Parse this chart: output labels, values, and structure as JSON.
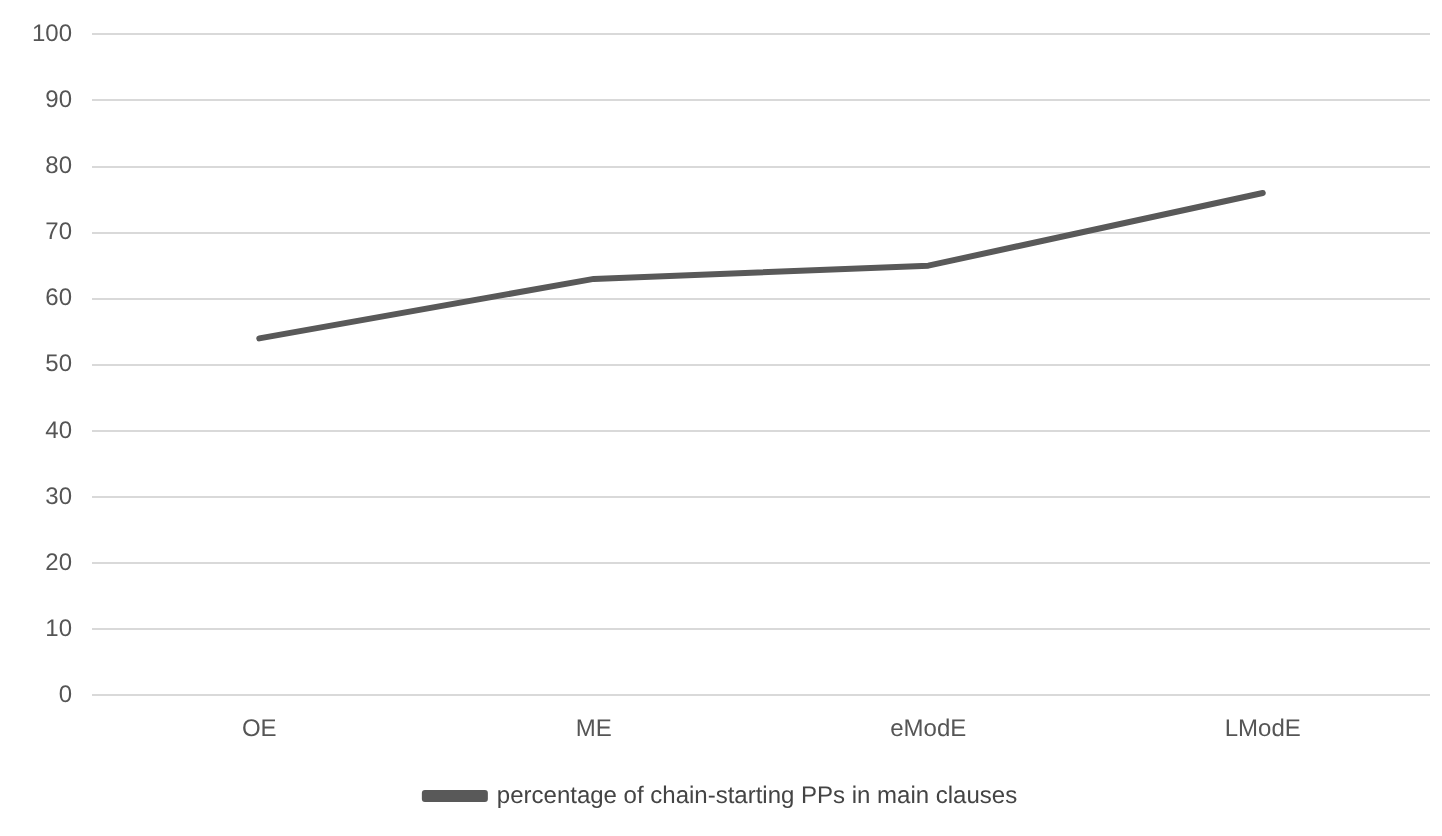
{
  "chart_data": {
    "type": "line",
    "categories": [
      "OE",
      "ME",
      "eModE",
      "LModE"
    ],
    "series": [
      {
        "name": "percentage of chain-starting PPs in main clauses",
        "color": "#595959",
        "values": [
          54,
          63,
          65,
          76
        ]
      }
    ],
    "ylim": [
      0,
      100
    ],
    "yticks": [
      0,
      10,
      20,
      30,
      40,
      50,
      60,
      70,
      80,
      90,
      100
    ],
    "grid": "y",
    "legend": "bottom",
    "marker": "none"
  }
}
